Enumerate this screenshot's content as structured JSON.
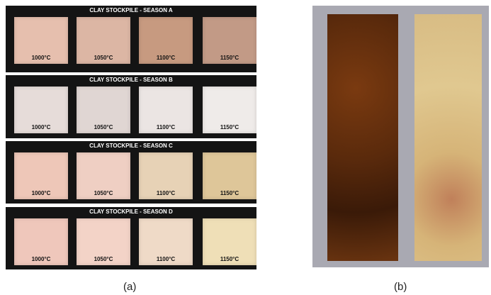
{
  "panel_a": {
    "rows": [
      {
        "title": "CLAY STOCKPILE - SEASON A",
        "tiles": [
          {
            "label": "1000°C"
          },
          {
            "label": "1050°C"
          },
          {
            "label": "1100°C"
          },
          {
            "label": "1150°C"
          }
        ]
      },
      {
        "title": "CLAY STOCKPILE - SEASON B",
        "tiles": [
          {
            "label": "1000°C"
          },
          {
            "label": "1050°C"
          },
          {
            "label": "1100°C"
          },
          {
            "label": "1150°C"
          }
        ]
      },
      {
        "title": "CLAY STOCKPILE - SEASON C",
        "tiles": [
          {
            "label": "1000°C"
          },
          {
            "label": "1050°C"
          },
          {
            "label": "1100°C"
          },
          {
            "label": "1150°C"
          }
        ]
      },
      {
        "title": "CLAY STOCKPILE - SEASON D",
        "tiles": [
          {
            "label": "1000°C"
          },
          {
            "label": "1050°C"
          },
          {
            "label": "1100°C"
          },
          {
            "label": "1150°C"
          }
        ]
      }
    ]
  },
  "captions": {
    "a": "(a)",
    "b": "(b)"
  }
}
